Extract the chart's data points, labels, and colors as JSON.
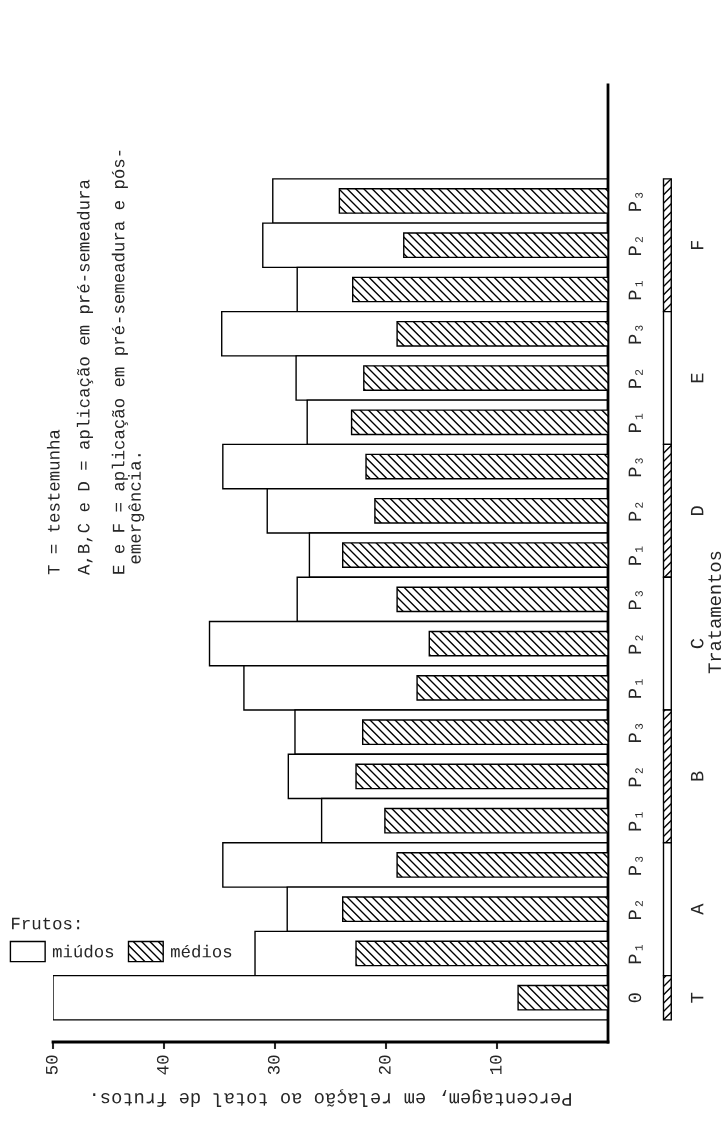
{
  "chart_data": {
    "type": "bar",
    "orientation": "horizontal",
    "categories": [
      "P₃",
      "P₂",
      "P₁",
      "P₃",
      "P₂",
      "P₁",
      "P₃",
      "P₂",
      "P₁",
      "P₃",
      "P₂",
      "P₁",
      "P₃",
      "P₂",
      "P₁",
      "P₃",
      "P₂",
      "P₁",
      "0"
    ],
    "series": [
      {
        "name": "miúdos",
        "color": "#ffffff",
        "values": [
          30.2,
          31.1,
          28.0,
          34.8,
          28.1,
          27.1,
          34.7,
          30.7,
          26.9,
          28.0,
          35.9,
          32.8,
          28.2,
          28.8,
          25.8,
          34.7,
          28.9,
          31.8,
          50.0
        ]
      },
      {
        "name": "médios",
        "color": "#000000",
        "values": [
          24.2,
          18.4,
          23.0,
          19.0,
          22.0,
          23.1,
          21.8,
          21.0,
          23.9,
          19.0,
          16.1,
          17.2,
          22.1,
          22.7,
          20.1,
          19.0,
          23.9,
          22.7,
          8.1
        ]
      }
    ],
    "xlim": [
      50,
      0
    ],
    "xticks": [
      10,
      20,
      30,
      40,
      50
    ],
    "xlabel": "Percentagem, em relação ao total de frutos.",
    "ylabel": "Tratamentos",
    "legend_title": "Frutos:",
    "legend": "bottom left",
    "grid": false,
    "annotations": [
      "T = testemunha",
      "A,B,C e D = aplicação em pré-semeadura",
      "E e F = aplicação em pré-semeadura e pós-\n emergência.",
      "F",
      "E",
      "D",
      "C",
      "B",
      "A",
      "T"
    ]
  }
}
